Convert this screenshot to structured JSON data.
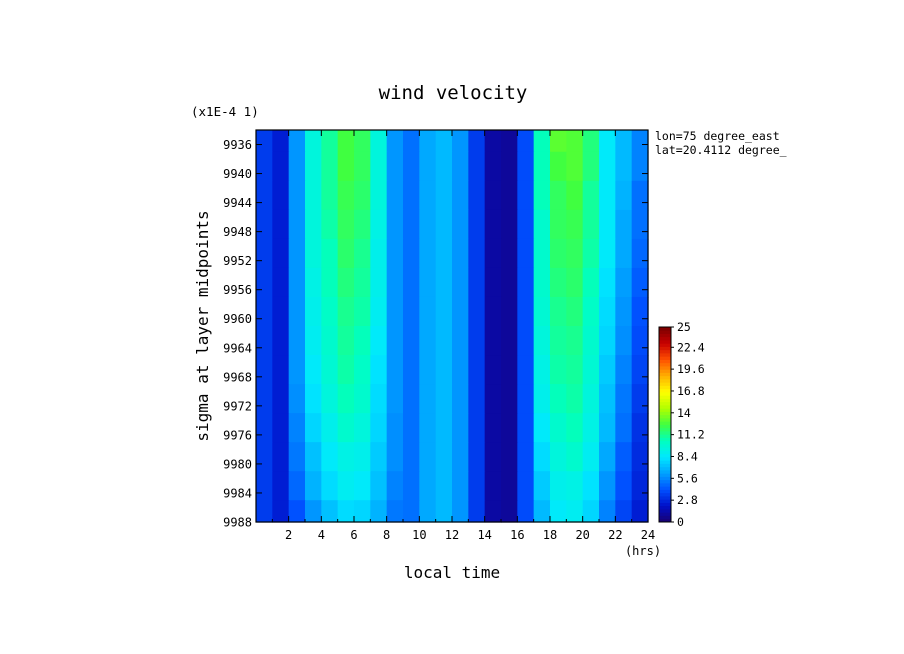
{
  "chart_data": {
    "type": "heatmap",
    "title": "wind velocity",
    "xlabel": "local time",
    "x_unit": "(hrs)",
    "ylabel": "sigma at layer midpoints",
    "y_scale_note": "(x1E-4 1)",
    "annotations": [
      "lon=75 degree_east",
      "lat=20.4112 degree_"
    ],
    "xlim": [
      0,
      24
    ],
    "ylim": [
      9988,
      9934
    ],
    "x_ticks": [
      2,
      4,
      6,
      8,
      10,
      12,
      14,
      16,
      18,
      20,
      22,
      24
    ],
    "x_tick_labels": [
      "2",
      "4",
      "6",
      "8",
      "10",
      "12",
      "14",
      "16",
      "18",
      "20",
      "22",
      "24"
    ],
    "y_ticks": [
      9936,
      9940,
      9944,
      9948,
      9952,
      9956,
      9960,
      9964,
      9968,
      9972,
      9976,
      9980,
      9984,
      9988
    ],
    "y_tick_labels": [
      "9936",
      "9940",
      "9944",
      "9948",
      "9952",
      "9956",
      "9960",
      "9964",
      "9968",
      "9972",
      "9976",
      "9980",
      "9984",
      "9988"
    ],
    "x": [
      0.5,
      1.5,
      2.5,
      3.5,
      4.5,
      5.5,
      6.5,
      7.5,
      8.5,
      9.5,
      10.5,
      11.5,
      12.5,
      13.5,
      14.5,
      15.5,
      16.5,
      17.5,
      18.5,
      19.5,
      20.5,
      21.5,
      22.5,
      23.5
    ],
    "y": [
      9935,
      9939,
      9943,
      9947,
      9951,
      9955,
      9959,
      9963,
      9967,
      9971,
      9975,
      9979,
      9983,
      9987
    ],
    "z": [
      [
        3.5,
        2.5,
        6.0,
        9.5,
        11.0,
        12.5,
        12.0,
        9.5,
        6.0,
        5.0,
        6.5,
        7.0,
        6.0,
        3.5,
        1.2,
        1.0,
        4.0,
        10.5,
        13.0,
        12.8,
        11.5,
        8.5,
        7.0,
        5.5
      ],
      [
        3.5,
        2.5,
        6.0,
        9.5,
        11.0,
        12.5,
        12.0,
        9.5,
        6.0,
        5.0,
        6.5,
        7.0,
        6.0,
        3.5,
        1.2,
        1.0,
        4.0,
        10.5,
        12.5,
        12.8,
        11.5,
        8.5,
        7.0,
        5.5
      ],
      [
        3.5,
        2.5,
        6.0,
        9.5,
        11.0,
        12.2,
        11.8,
        9.5,
        6.0,
        5.0,
        6.5,
        7.0,
        6.0,
        3.5,
        1.2,
        1.0,
        4.0,
        10.5,
        12.0,
        12.5,
        11.0,
        8.5,
        6.8,
        5.0
      ],
      [
        3.5,
        2.5,
        6.0,
        9.5,
        10.8,
        12.0,
        11.5,
        9.2,
        6.0,
        5.0,
        6.5,
        7.0,
        6.0,
        3.5,
        1.2,
        1.0,
        4.0,
        10.0,
        12.0,
        12.2,
        11.0,
        8.5,
        6.5,
        5.0
      ],
      [
        3.5,
        2.5,
        6.0,
        9.5,
        10.5,
        11.8,
        11.2,
        9.0,
        6.0,
        5.0,
        6.5,
        7.0,
        6.0,
        3.5,
        1.2,
        1.0,
        4.0,
        10.0,
        11.8,
        12.0,
        10.8,
        8.5,
        6.5,
        4.8
      ],
      [
        3.5,
        2.5,
        6.0,
        9.2,
        10.5,
        11.5,
        11.0,
        9.0,
        6.0,
        5.0,
        6.5,
        7.0,
        6.0,
        3.5,
        1.2,
        1.0,
        4.0,
        10.0,
        11.5,
        11.8,
        10.5,
        8.2,
        6.2,
        4.5
      ],
      [
        3.5,
        2.5,
        6.0,
        9.0,
        10.2,
        11.2,
        10.8,
        8.8,
        6.0,
        5.0,
        6.5,
        7.0,
        6.0,
        3.5,
        1.2,
        1.0,
        4.0,
        9.8,
        11.2,
        11.5,
        10.2,
        8.0,
        6.0,
        4.2
      ],
      [
        3.5,
        2.5,
        6.0,
        8.8,
        10.0,
        11.0,
        10.5,
        8.5,
        6.0,
        5.0,
        6.5,
        7.0,
        6.0,
        3.5,
        1.2,
        1.0,
        4.0,
        9.5,
        11.0,
        11.2,
        10.0,
        7.8,
        5.8,
        4.0
      ],
      [
        3.5,
        2.5,
        6.0,
        8.5,
        9.8,
        10.8,
        10.2,
        8.2,
        6.0,
        5.0,
        6.5,
        7.0,
        6.0,
        3.5,
        1.2,
        1.0,
        4.0,
        9.2,
        10.8,
        11.0,
        9.8,
        7.5,
        5.5,
        3.8
      ],
      [
        3.5,
        2.5,
        5.8,
        8.2,
        9.5,
        10.5,
        10.0,
        8.0,
        6.0,
        5.0,
        6.5,
        7.0,
        6.0,
        3.5,
        1.2,
        1.0,
        4.0,
        9.0,
        10.5,
        10.8,
        9.5,
        7.2,
        5.2,
        3.5
      ],
      [
        3.5,
        2.5,
        5.5,
        7.8,
        9.0,
        10.0,
        9.5,
        7.8,
        5.8,
        5.0,
        6.5,
        7.0,
        6.0,
        3.5,
        1.2,
        1.0,
        4.0,
        8.5,
        10.0,
        10.5,
        9.2,
        7.0,
        5.0,
        3.2
      ],
      [
        3.5,
        2.5,
        5.2,
        7.2,
        8.5,
        9.2,
        9.0,
        7.5,
        5.8,
        5.0,
        6.5,
        7.0,
        6.0,
        3.5,
        1.2,
        1.0,
        4.0,
        8.0,
        9.5,
        10.0,
        8.8,
        6.5,
        4.5,
        3.0
      ],
      [
        3.5,
        2.5,
        4.8,
        6.8,
        8.0,
        8.8,
        8.5,
        7.2,
        5.5,
        5.0,
        6.5,
        7.0,
        6.0,
        3.5,
        1.2,
        1.0,
        4.0,
        7.5,
        9.0,
        9.2,
        8.2,
        6.0,
        4.2,
        2.8
      ],
      [
        3.5,
        2.5,
        4.2,
        6.0,
        7.2,
        8.0,
        7.8,
        6.8,
        5.2,
        5.0,
        6.5,
        7.0,
        6.0,
        3.5,
        1.2,
        1.0,
        4.0,
        7.0,
        8.5,
        8.8,
        7.8,
        5.5,
        3.8,
        2.5
      ]
    ],
    "colorbar": {
      "range": [
        0,
        25
      ],
      "tick_labels": [
        "0",
        "2.8",
        "5.6",
        "8.4",
        "11.2",
        "14",
        "16.8",
        "19.6",
        "22.4",
        "25"
      ],
      "tick_values": [
        0,
        2.8,
        5.6,
        8.4,
        11.2,
        14,
        16.8,
        19.6,
        22.4,
        25
      ],
      "colormap": [
        "#1a0070",
        "#0010c8",
        "#0050ff",
        "#00a0ff",
        "#00e8ff",
        "#00ffc0",
        "#40ff40",
        "#b0ff00",
        "#ffff00",
        "#ffb000",
        "#ff5000",
        "#c80000",
        "#780000"
      ]
    }
  }
}
